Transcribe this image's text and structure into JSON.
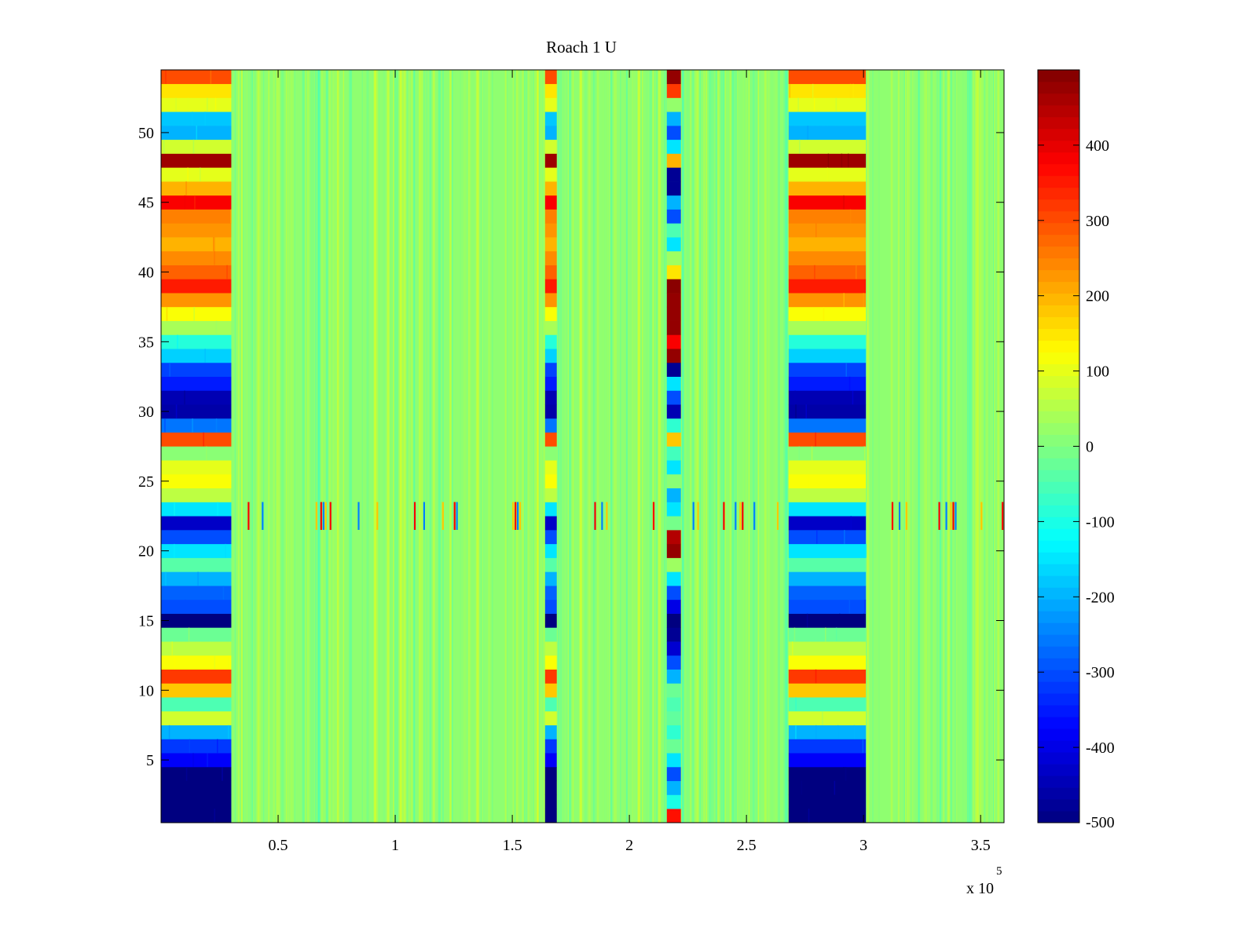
{
  "chart_data": {
    "type": "heatmap",
    "title": "Roach 1 U",
    "xlabel": "",
    "ylabel": "",
    "x_exponent_label": "x 10",
    "x_exponent": "5",
    "xlim": [
      0,
      3.6
    ],
    "ylim": [
      0.5,
      54.5
    ],
    "xticks": [
      0.5,
      1,
      1.5,
      2,
      2.5,
      3,
      3.5
    ],
    "xtick_labels": [
      "0.5",
      "1",
      "1.5",
      "2",
      "2.5",
      "3",
      "3.5"
    ],
    "yticks": [
      5,
      10,
      15,
      20,
      25,
      30,
      35,
      40,
      45,
      50
    ],
    "ytick_labels": [
      "5",
      "10",
      "15",
      "20",
      "25",
      "30",
      "35",
      "40",
      "45",
      "50"
    ],
    "n_rows": 54,
    "colormap": "jet",
    "clim": [
      -500,
      500
    ],
    "colorbar_ticks": [
      -500,
      -400,
      -300,
      -200,
      -100,
      0,
      100,
      200,
      300,
      400
    ],
    "colorbar_tick_labels": [
      "-500",
      "-400",
      "-300",
      "-200",
      "-100",
      "0",
      "100",
      "200",
      "300",
      "400"
    ],
    "background_level": 20,
    "bands": [
      {
        "name": "block-a",
        "x_start": 0,
        "x_end": 0.3,
        "profile": "A"
      },
      {
        "name": "stripe-b",
        "x_start": 1.64,
        "x_end": 1.69,
        "profile": "A"
      },
      {
        "name": "stripe-c",
        "x_start": 2.16,
        "x_end": 2.22,
        "profile": "C"
      },
      {
        "name": "block-d",
        "x_start": 2.68,
        "x_end": 3.01,
        "profile": "A"
      }
    ],
    "row_profiles": {
      "A": [
        -500,
        -500,
        -500,
        -500,
        -380,
        -320,
        -200,
        80,
        -50,
        180,
        320,
        120,
        60,
        -20,
        -500,
        -300,
        -280,
        -200,
        -40,
        -150,
        -300,
        -430,
        -150,
        60,
        120,
        100,
        10,
        300,
        -260,
        -460,
        -450,
        -350,
        -310,
        -170,
        -90,
        40,
        120,
        230,
        350,
        280,
        240,
        200,
        230,
        250,
        380,
        200,
        100,
        470,
        80,
        -200,
        -180,
        100,
        150,
        300
      ],
      "C": [
        360,
        -100,
        -200,
        -300,
        -150,
        -20,
        -80,
        -30,
        -50,
        -20,
        -200,
        -300,
        -420,
        -480,
        -500,
        -400,
        -300,
        -150,
        30,
        480,
        450,
        -10,
        -150,
        -200,
        10,
        -150,
        -60,
        180,
        -80,
        -450,
        -300,
        -150,
        -480,
        480,
        380,
        480,
        480,
        480,
        490,
        150,
        30,
        -150,
        -50,
        -300,
        -200,
        -480,
        -480,
        200,
        -150,
        -300,
        -200,
        20,
        320,
        480
      ]
    },
    "spike_row": 23,
    "spike_x": [
      0.37,
      0.43,
      0.66,
      0.68,
      0.69,
      0.7,
      0.72,
      0.84,
      0.92,
      1.08,
      1.12,
      1.2,
      1.25,
      1.26,
      1.5,
      1.51,
      1.52,
      1.53,
      1.85,
      1.88,
      1.9,
      2.1,
      2.27,
      2.29,
      2.4,
      2.45,
      2.47,
      2.48,
      2.53,
      2.63,
      3.12,
      3.15,
      3.18,
      3.32,
      3.35,
      3.37,
      3.38,
      3.39,
      3.5,
      3.59
    ]
  }
}
